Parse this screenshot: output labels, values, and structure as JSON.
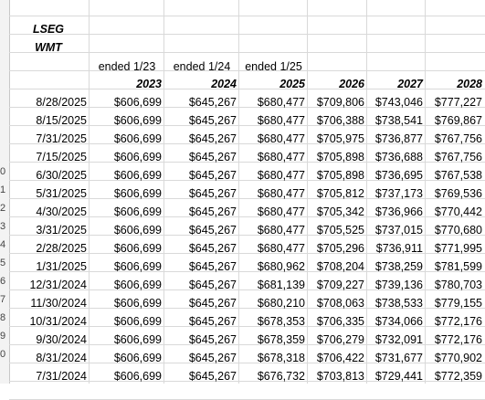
{
  "labels": {
    "lseg": "LSEG",
    "ticker": "WMT"
  },
  "period_labels": [
    "ended 1/23",
    "ended 1/24",
    "ended 1/25"
  ],
  "years": [
    "2023",
    "2024",
    "2025",
    "2026",
    "2027",
    "2028"
  ],
  "row_numbers": [
    "",
    "",
    "",
    "",
    "",
    "0",
    "1",
    "2",
    "3",
    "4",
    "5",
    "6",
    "7",
    "8",
    "9",
    "0",
    ""
  ],
  "rows": [
    {
      "date": "8/28/2025",
      "v": [
        "$606,699",
        "$645,267",
        "$680,477",
        "$709,806",
        "$743,046",
        "$777,227"
      ]
    },
    {
      "date": "8/15/2025",
      "v": [
        "$606,699",
        "$645,267",
        "$680,477",
        "$706,388",
        "$738,541",
        "$769,867"
      ]
    },
    {
      "date": "7/31/2025",
      "v": [
        "$606,699",
        "$645,267",
        "$680,477",
        "$705,975",
        "$736,877",
        "$767,756"
      ]
    },
    {
      "date": "7/15/2025",
      "v": [
        "$606,699",
        "$645,267",
        "$680,477",
        "$705,898",
        "$736,688",
        "$767,756"
      ]
    },
    {
      "date": "6/30/2025",
      "v": [
        "$606,699",
        "$645,267",
        "$680,477",
        "$705,898",
        "$736,695",
        "$767,538"
      ]
    },
    {
      "date": "5/31/2025",
      "v": [
        "$606,699",
        "$645,267",
        "$680,477",
        "$705,812",
        "$737,173",
        "$769,536"
      ]
    },
    {
      "date": "4/30/2025",
      "v": [
        "$606,699",
        "$645,267",
        "$680,477",
        "$705,342",
        "$736,966",
        "$770,442"
      ]
    },
    {
      "date": "3/31/2025",
      "v": [
        "$606,699",
        "$645,267",
        "$680,477",
        "$705,525",
        "$737,015",
        "$770,680"
      ]
    },
    {
      "date": "2/28/2025",
      "v": [
        "$606,699",
        "$645,267",
        "$680,477",
        "$705,296",
        "$736,911",
        "$771,995"
      ]
    },
    {
      "date": "1/31/2025",
      "v": [
        "$606,699",
        "$645,267",
        "$680,962",
        "$708,204",
        "$738,259",
        "$781,599"
      ]
    },
    {
      "date": "12/31/2024",
      "v": [
        "$606,699",
        "$645,267",
        "$681,139",
        "$709,227",
        "$739,136",
        "$780,703"
      ]
    },
    {
      "date": "11/30/2024",
      "v": [
        "$606,699",
        "$645,267",
        "$680,210",
        "$708,063",
        "$738,533",
        "$779,155"
      ]
    },
    {
      "date": "10/31/2024",
      "v": [
        "$606,699",
        "$645,267",
        "$678,353",
        "$706,335",
        "$734,066",
        "$772,176"
      ]
    },
    {
      "date": "9/30/2024",
      "v": [
        "$606,699",
        "$645,267",
        "$678,359",
        "$706,279",
        "$732,091",
        "$772,176"
      ]
    },
    {
      "date": "8/31/2024",
      "v": [
        "$606,699",
        "$645,267",
        "$678,318",
        "$706,422",
        "$731,677",
        "$770,902"
      ]
    },
    {
      "date": "7/31/2024",
      "v": [
        "$606,699",
        "$645,267",
        "$676,732",
        "$703,813",
        "$729,441",
        "$772,359"
      ]
    }
  ]
}
